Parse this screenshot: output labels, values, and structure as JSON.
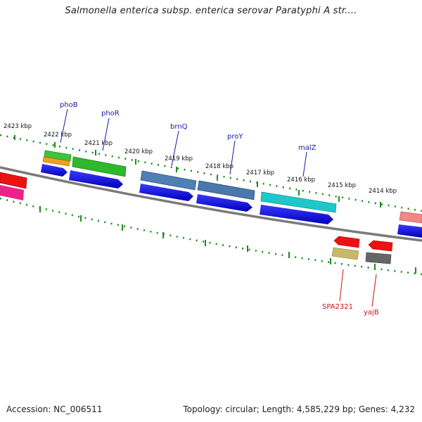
{
  "title": "Salmonella enterica subsp. enterica serovar Paratyphi A str....",
  "footer": {
    "accession": "Accession: NC_006511",
    "topology": "Topology: circular; Length: 4,585,229 bp; Genes: 4,232"
  },
  "scale_labels": [
    "2423 kbp",
    "2422 kbp",
    "2421 kbp",
    "2420 kbp",
    "2419 kbp",
    "2418 kbp",
    "2417 kbp",
    "2416 kbp",
    "2415 kbp",
    "2414 kbp"
  ],
  "gene_labels": {
    "phoB": "phoB",
    "phoR": "phoR",
    "brnQ": "brnQ",
    "proY": "proY",
    "malZ": "malZ",
    "SPA2321": "SPA2321",
    "yajB": "yajB"
  },
  "colors": {
    "backbone": "#7a7a7a",
    "tick": "#1f8a1f",
    "cds_blue": "#1010e0",
    "phoB_green": "#3cc43c",
    "phoB_orange": "#f0a020",
    "phoR_green": "#2eb82e",
    "brnQ": "#4f7fb5",
    "proY": "#4a78ac",
    "malZ": "#1ec8c8",
    "red": "#ee1111",
    "pink": "#ee2288",
    "salmon": "#f08888",
    "khaki": "#c8b86a",
    "gray": "#666666",
    "label_blue": "#1a1aa0",
    "label_red": "#cc1111"
  }
}
